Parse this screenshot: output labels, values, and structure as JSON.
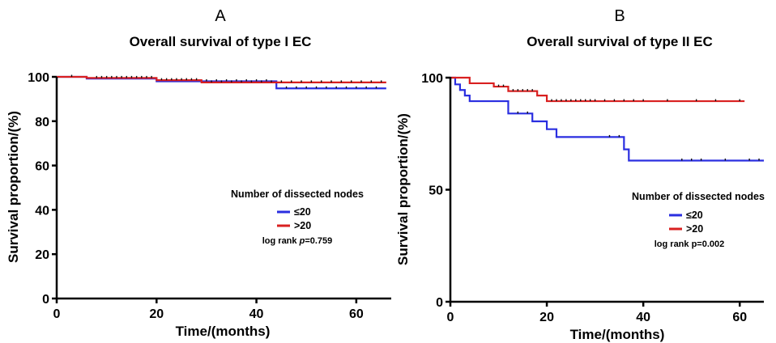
{
  "chart_data": [
    {
      "type": "line",
      "panel_label": "A",
      "title": "Overall survival of type I EC",
      "xlabel": "Time/(months)",
      "ylabel": "Survival proportion/(%)",
      "xlim": [
        0,
        67
      ],
      "ylim": [
        0,
        100
      ],
      "xticks": [
        0,
        20,
        40,
        60
      ],
      "yticks": [
        0,
        20,
        40,
        60,
        80,
        100
      ],
      "legend": {
        "title": "Number of dissected nodes",
        "note_prefix": "log rank ",
        "note_p": "p",
        "note_value": "=0.759"
      },
      "series": [
        {
          "name": "≤20",
          "color": "#2a2ee0",
          "steps": [
            [
              0,
              100
            ],
            [
              6,
              99.2
            ],
            [
              20,
              98.0
            ],
            [
              44,
              94.8
            ],
            [
              66,
              94.8
            ]
          ],
          "censored": [
            30,
            32,
            34,
            36,
            38,
            40,
            42,
            46,
            48,
            50,
            52,
            54,
            56,
            58,
            60,
            62,
            64
          ]
        },
        {
          "name": ">20",
          "color": "#d92020",
          "steps": [
            [
              0,
              100
            ],
            [
              6,
              99.5
            ],
            [
              20,
              98.5
            ],
            [
              29,
              97.5
            ],
            [
              66,
              97.5
            ]
          ],
          "censored": [
            3,
            8,
            9,
            10,
            11,
            12,
            13,
            14,
            15,
            16,
            17,
            18,
            19,
            21,
            22,
            23,
            24,
            25,
            26,
            27,
            28,
            31,
            33,
            35,
            37,
            39,
            41,
            43,
            45,
            47,
            49,
            51,
            53,
            55,
            57,
            59,
            61,
            63,
            65
          ]
        }
      ]
    },
    {
      "type": "line",
      "panel_label": "B",
      "title": "Overall survival of type II EC",
      "xlabel": "Time/(months)",
      "ylabel": "Survival proportion/(%)",
      "xlim": [
        0,
        65
      ],
      "ylim": [
        0,
        100
      ],
      "xticks": [
        0,
        20,
        40,
        60
      ],
      "yticks": [
        0,
        50,
        100
      ],
      "legend": {
        "title": "Number of dissected nodes",
        "note_prefix": "log rank p=0.002",
        "note_p": "",
        "note_value": ""
      },
      "series": [
        {
          "name": "≤20",
          "color": "#2a2ee0",
          "steps": [
            [
              0,
              100
            ],
            [
              1,
              97
            ],
            [
              2,
              94.5
            ],
            [
              3,
              92
            ],
            [
              4,
              89.5
            ],
            [
              12,
              84
            ],
            [
              17,
              80.5
            ],
            [
              20,
              77
            ],
            [
              22,
              73.5
            ],
            [
              36,
              68
            ],
            [
              37,
              63
            ],
            [
              65,
              63
            ]
          ],
          "censored": [
            14,
            16,
            33,
            35,
            48,
            50,
            52,
            57,
            62,
            64
          ]
        },
        {
          "name": ">20",
          "color": "#d92020",
          "steps": [
            [
              0,
              100
            ],
            [
              4,
              97.5
            ],
            [
              9,
              96
            ],
            [
              12,
              94
            ],
            [
              18,
              92
            ],
            [
              20,
              89.5
            ],
            [
              61,
              89.5
            ]
          ],
          "censored": [
            10,
            11,
            13,
            14,
            15,
            16,
            17,
            21,
            22,
            23,
            24,
            25,
            26,
            27,
            28,
            29,
            30,
            32,
            34,
            36,
            38,
            40,
            45,
            51,
            55,
            60
          ]
        }
      ]
    }
  ]
}
